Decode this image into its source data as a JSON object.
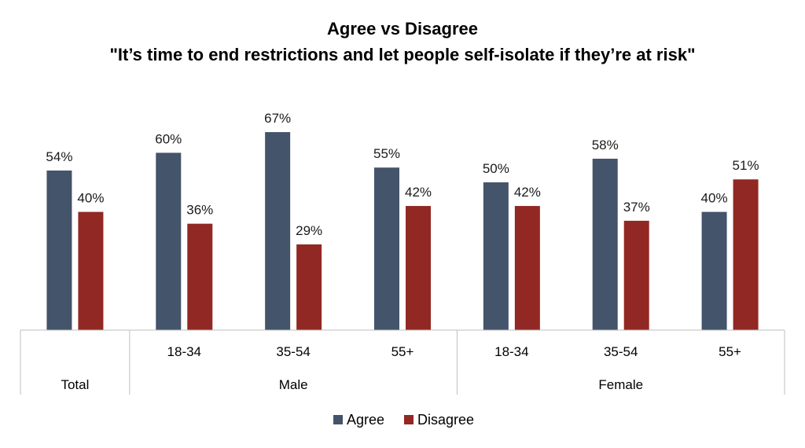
{
  "chart_data": {
    "type": "bar",
    "title": "Agree vs Disagree",
    "subtitle": "\"It’s time to end restrictions and let people self-isolate if they’re at risk\"",
    "groups": [
      {
        "label": "Total",
        "categories": [
          ""
        ]
      },
      {
        "label": "Male",
        "categories": [
          "18-34",
          "35-54",
          "55+"
        ]
      },
      {
        "label": "Female",
        "categories": [
          "18-34",
          "35-54",
          "55+"
        ]
      }
    ],
    "categories": [
      "Total",
      "Male 18-34",
      "Male 35-54",
      "Male 55+",
      "Female 18-34",
      "Female 35-54",
      "Female 55+"
    ],
    "series": [
      {
        "name": "Agree",
        "color": "#44546a",
        "values": [
          54,
          60,
          67,
          55,
          50,
          58,
          40
        ],
        "labels": [
          "54%",
          "60%",
          "67%",
          "55%",
          "50%",
          "58%",
          "40%"
        ]
      },
      {
        "name": "Disagree",
        "color": "#922823",
        "values": [
          40,
          36,
          29,
          42,
          42,
          37,
          51
        ],
        "labels": [
          "40%",
          "36%",
          "29%",
          "42%",
          "42%",
          "37%",
          "51%"
        ]
      }
    ],
    "ylim": [
      0,
      70
    ],
    "grid": false,
    "legend": "bottom-center"
  }
}
